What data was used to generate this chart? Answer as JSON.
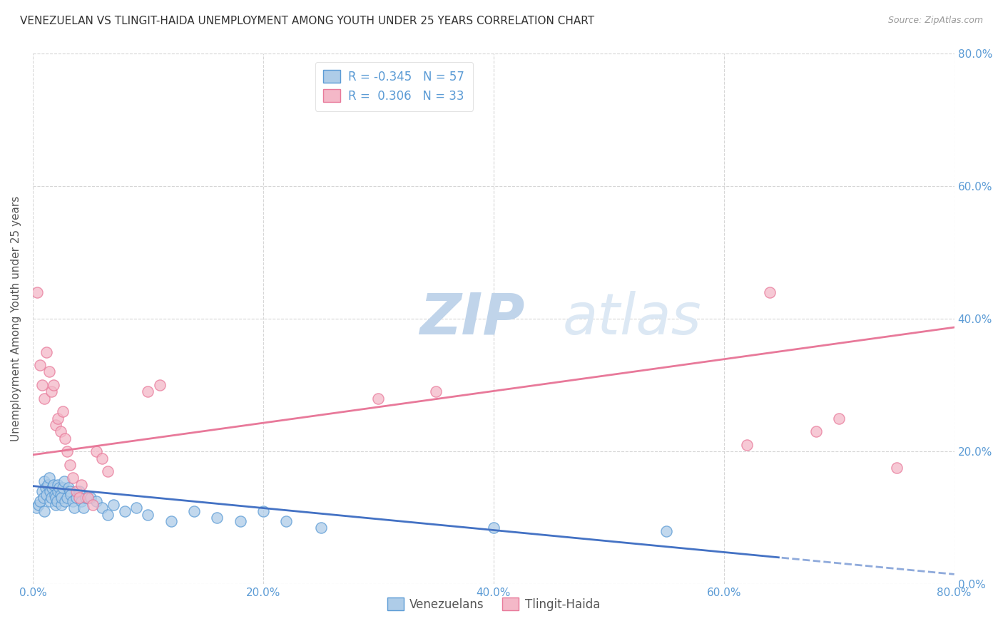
{
  "title": "VENEZUELAN VS TLINGIT-HAIDA UNEMPLOYMENT AMONG YOUTH UNDER 25 YEARS CORRELATION CHART",
  "source": "Source: ZipAtlas.com",
  "ylabel": "Unemployment Among Youth under 25 years",
  "venezuelan_R": -0.345,
  "venezuelan_N": 57,
  "tlingit_R": 0.306,
  "tlingit_N": 33,
  "xlim": [
    0.0,
    0.8
  ],
  "ylim": [
    0.0,
    0.8
  ],
  "xticks": [
    0.0,
    0.2,
    0.4,
    0.6,
    0.8
  ],
  "yticks": [
    0.0,
    0.2,
    0.4,
    0.6,
    0.8
  ],
  "background_color": "#ffffff",
  "grid_color": "#cccccc",
  "title_color": "#333333",
  "source_color": "#999999",
  "venezuelan_fill": "#aecce8",
  "venezuelan_edge": "#5b9bd5",
  "tlingit_fill": "#f4b8c8",
  "tlingit_edge": "#e8799a",
  "venezuelan_line_color": "#4472c4",
  "tlingit_line_color": "#e8799a",
  "axis_tick_color": "#5b9bd5",
  "watermark_zip_color": "#c8d8ee",
  "watermark_atlas_color": "#dde8f4",
  "venezuelan_scatter_x": [
    0.003,
    0.005,
    0.006,
    0.008,
    0.009,
    0.01,
    0.01,
    0.011,
    0.012,
    0.013,
    0.014,
    0.015,
    0.015,
    0.016,
    0.017,
    0.018,
    0.019,
    0.02,
    0.02,
    0.021,
    0.022,
    0.022,
    0.023,
    0.024,
    0.025,
    0.025,
    0.026,
    0.027,
    0.028,
    0.03,
    0.031,
    0.032,
    0.033,
    0.035,
    0.036,
    0.038,
    0.04,
    0.042,
    0.044,
    0.046,
    0.05,
    0.055,
    0.06,
    0.065,
    0.07,
    0.08,
    0.09,
    0.1,
    0.12,
    0.14,
    0.16,
    0.18,
    0.2,
    0.22,
    0.25,
    0.4,
    0.55
  ],
  "venezuelan_scatter_y": [
    0.115,
    0.12,
    0.125,
    0.14,
    0.13,
    0.11,
    0.155,
    0.145,
    0.135,
    0.15,
    0.16,
    0.125,
    0.14,
    0.13,
    0.145,
    0.15,
    0.135,
    0.12,
    0.13,
    0.125,
    0.14,
    0.15,
    0.145,
    0.135,
    0.12,
    0.13,
    0.145,
    0.155,
    0.125,
    0.13,
    0.145,
    0.14,
    0.135,
    0.125,
    0.115,
    0.13,
    0.14,
    0.125,
    0.115,
    0.13,
    0.13,
    0.125,
    0.115,
    0.105,
    0.12,
    0.11,
    0.115,
    0.105,
    0.095,
    0.11,
    0.1,
    0.095,
    0.11,
    0.095,
    0.085,
    0.085,
    0.08
  ],
  "tlingit_scatter_x": [
    0.004,
    0.006,
    0.008,
    0.01,
    0.012,
    0.014,
    0.016,
    0.018,
    0.02,
    0.022,
    0.024,
    0.026,
    0.028,
    0.03,
    0.032,
    0.035,
    0.038,
    0.04,
    0.042,
    0.048,
    0.052,
    0.055,
    0.06,
    0.065,
    0.1,
    0.11,
    0.3,
    0.35,
    0.62,
    0.64,
    0.68,
    0.7,
    0.75
  ],
  "tlingit_scatter_y": [
    0.44,
    0.33,
    0.3,
    0.28,
    0.35,
    0.32,
    0.29,
    0.3,
    0.24,
    0.25,
    0.23,
    0.26,
    0.22,
    0.2,
    0.18,
    0.16,
    0.14,
    0.13,
    0.15,
    0.13,
    0.12,
    0.2,
    0.19,
    0.17,
    0.29,
    0.3,
    0.28,
    0.29,
    0.21,
    0.44,
    0.23,
    0.25,
    0.175
  ],
  "ven_line_x0": 0.0,
  "ven_line_y0": 0.148,
  "ven_line_x1": 0.65,
  "ven_line_y1": 0.04,
  "tli_line_x0": 0.0,
  "tli_line_y0": 0.195,
  "tli_line_x1": 0.75,
  "tli_line_y1": 0.375
}
